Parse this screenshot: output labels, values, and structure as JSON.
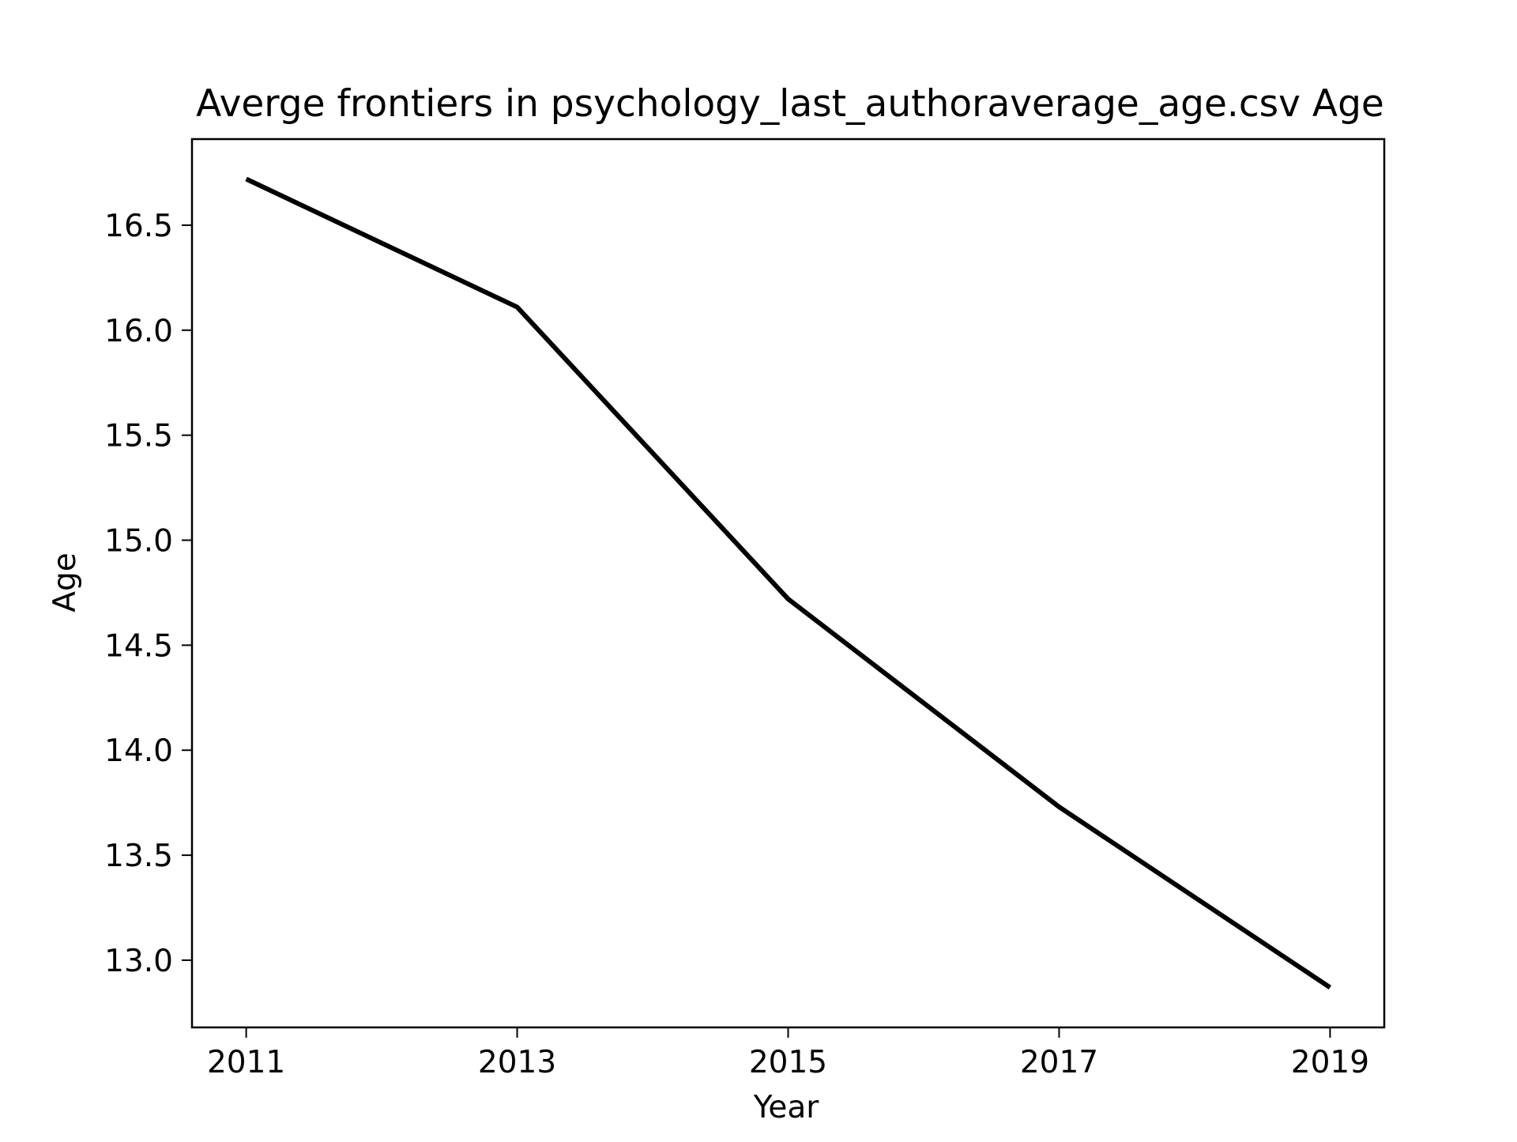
{
  "chart_data": {
    "type": "line",
    "title": "Averge frontiers in psychology_last_authoraverage_age.csv Age",
    "xlabel": "Year",
    "ylabel": "Age",
    "x": [
      2011,
      2013,
      2015,
      2017,
      2019
    ],
    "series": [
      {
        "values": [
          16.72,
          16.11,
          14.72,
          13.73,
          12.87
        ],
        "color": "#000000"
      }
    ],
    "xticks": [
      "2011",
      "2013",
      "2015",
      "2017",
      "2019"
    ],
    "yticks": [
      "13.0",
      "13.5",
      "14.0",
      "14.5",
      "15.0",
      "15.5",
      "16.0",
      "16.5"
    ],
    "xlim": [
      2010.6,
      2019.4
    ],
    "ylim": [
      12.68,
      16.91
    ],
    "grid": false,
    "legend": "none"
  }
}
